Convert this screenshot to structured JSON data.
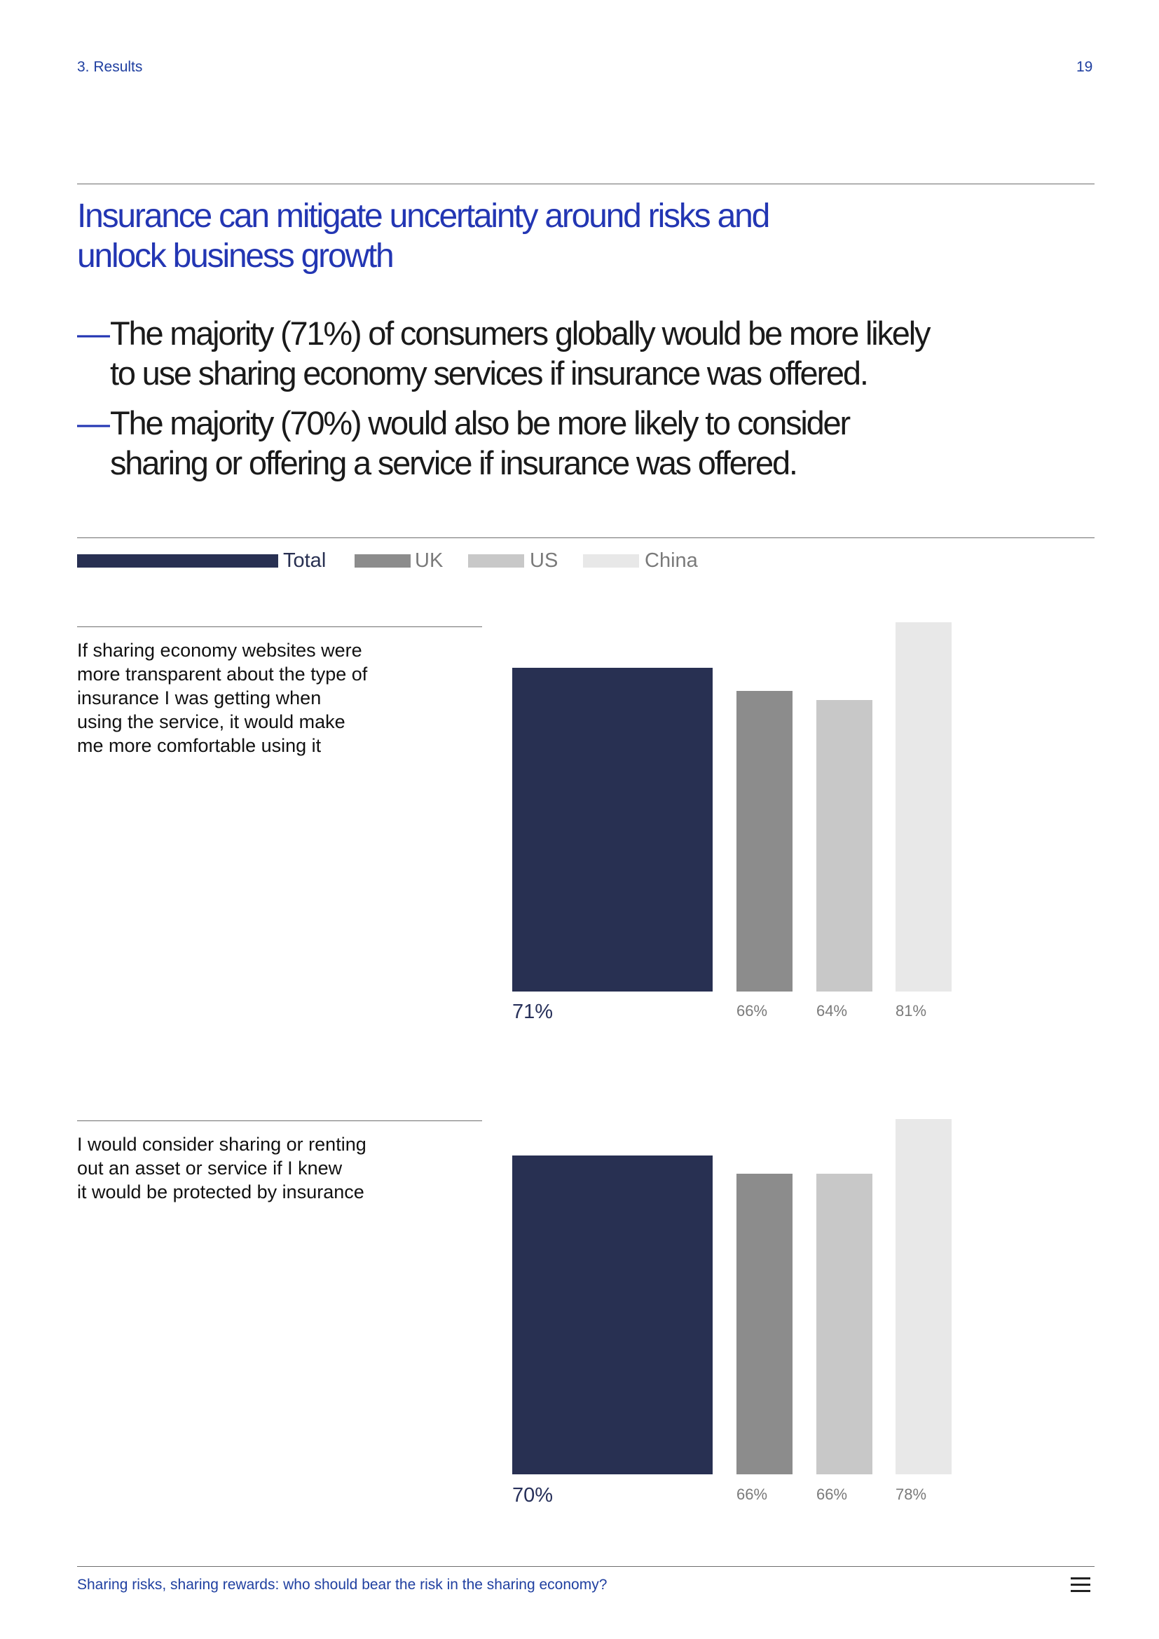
{
  "header": {
    "section": "3. Results",
    "page_number": "19"
  },
  "title": {
    "line1": "Insurance can mitigate uncertainty around risks and",
    "line2": "unlock business growth"
  },
  "bullets": [
    {
      "dash": "—",
      "line1": "The majority (71%) of consumers globally would be more likely",
      "line2": "to use sharing economy services if insurance was offered."
    },
    {
      "dash": "—",
      "line1": "The majority (70%) would also be more likely to consider",
      "line2": "sharing or offering a service if insurance was offered."
    }
  ],
  "legend": [
    {
      "label": "Total",
      "color": "#283052"
    },
    {
      "label": "UK",
      "color": "#8c8c8c"
    },
    {
      "label": "US",
      "color": "#c8c8c8"
    },
    {
      "label": "China",
      "color": "#e8e8e8"
    }
  ],
  "chart_data": [
    {
      "type": "bar",
      "question": [
        "If sharing economy websites were",
        "more transparent about the type of",
        "insurance I was getting when",
        "using the service, it would make",
        "me more comfortable using it"
      ],
      "categories": [
        "Total",
        "UK",
        "US",
        "China"
      ],
      "values": [
        71,
        66,
        64,
        81
      ],
      "labels": [
        "71%",
        "66%",
        "64%",
        "81%"
      ],
      "colors": [
        "#283052",
        "#8c8c8c",
        "#c8c8c8",
        "#e8e8e8"
      ]
    },
    {
      "type": "bar",
      "question": [
        "I would consider sharing or renting",
        "out an asset or service if I knew",
        "it would be protected by insurance"
      ],
      "categories": [
        "Total",
        "UK",
        "US",
        "China"
      ],
      "values": [
        70,
        66,
        66,
        78
      ],
      "labels": [
        "70%",
        "66%",
        "66%",
        "78%"
      ],
      "colors": [
        "#283052",
        "#8c8c8c",
        "#c8c8c8",
        "#e8e8e8"
      ]
    }
  ],
  "footer": {
    "text": "Sharing risks, sharing rewards: who should bear the risk in the sharing economy?",
    "menu_icon": "menu-icon"
  }
}
